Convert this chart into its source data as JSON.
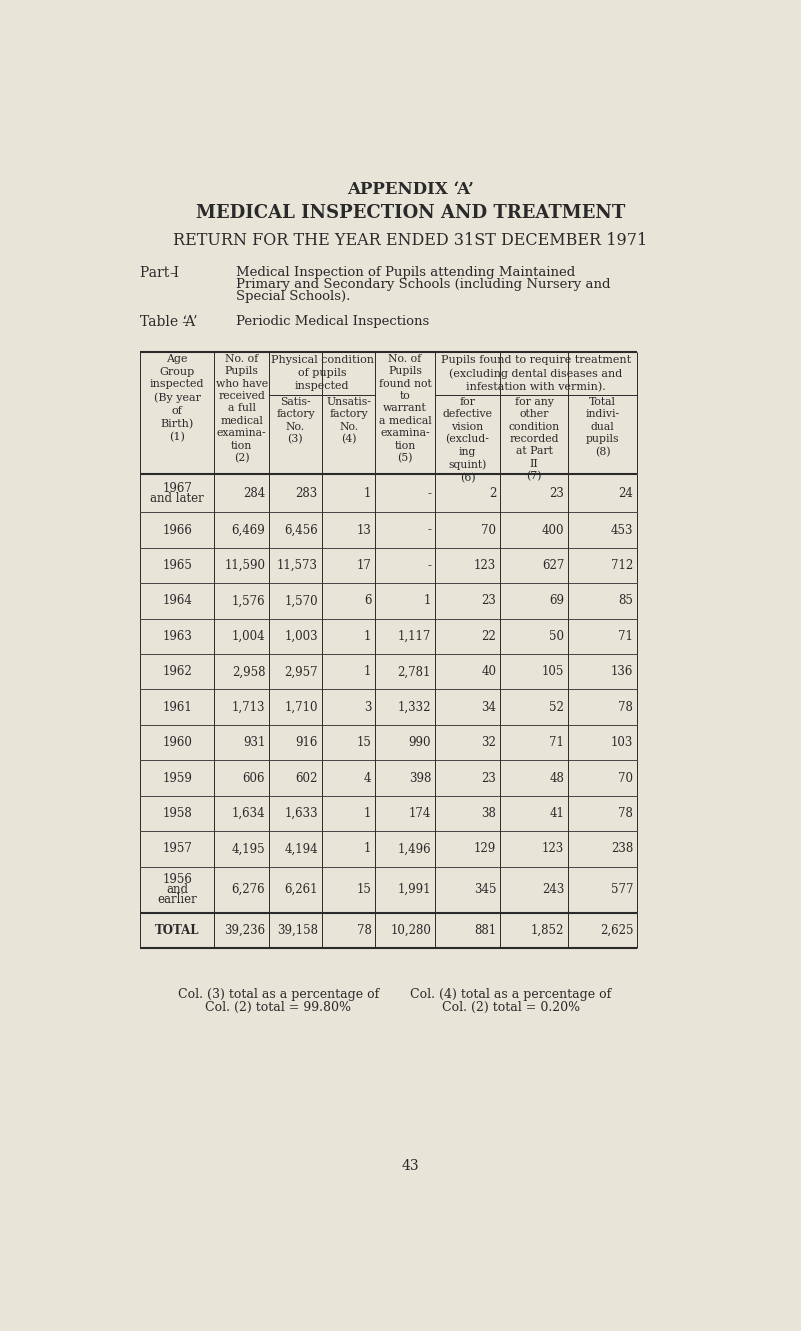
{
  "bg_color": "#e8e4d8",
  "text_color": "#2a2a2a",
  "title1": "APPENDIX ‘A’",
  "title2": "MEDICAL INSPECTION AND TREATMENT",
  "title3": "RETURN FOR THE YEAR ENDED 31ST DECEMBER 1971",
  "part_label": "Part I",
  "part_dash": "–",
  "part_lines": [
    "Medical Inspection of Pupils attending Maintained",
    "Primary and Secondary Schools (including Nursery and",
    "Special Schools)."
  ],
  "table_label": "Table ‘A’",
  "table_dash": "–",
  "table_text": "Periodic Medical Inspections",
  "rows": [
    {
      "age": "1967\nand later",
      "c2": "284",
      "c3": "283",
      "c4": "1",
      "c5": "-",
      "c6": "2",
      "c7": "23",
      "c8": "24"
    },
    {
      "age": "1966",
      "c2": "6,469",
      "c3": "6,456",
      "c4": "13",
      "c5": "-",
      "c6": "70",
      "c7": "400",
      "c8": "453"
    },
    {
      "age": "1965",
      "c2": "11,590",
      "c3": "11,573",
      "c4": "17",
      "c5": "-",
      "c6": "123",
      "c7": "627",
      "c8": "712"
    },
    {
      "age": "1964",
      "c2": "1,576",
      "c3": "1,570",
      "c4": "6",
      "c5": "1",
      "c6": "23",
      "c7": "69",
      "c8": "85"
    },
    {
      "age": "1963",
      "c2": "1,004",
      "c3": "1,003",
      "c4": "1",
      "c5": "1,117",
      "c6": "22",
      "c7": "50",
      "c8": "71"
    },
    {
      "age": "1962",
      "c2": "2,958",
      "c3": "2,957",
      "c4": "1",
      "c5": "2,781",
      "c6": "40",
      "c7": "105",
      "c8": "136"
    },
    {
      "age": "1961",
      "c2": "1,713",
      "c3": "1,710",
      "c4": "3",
      "c5": "1,332",
      "c6": "34",
      "c7": "52",
      "c8": "78"
    },
    {
      "age": "1960",
      "c2": "931",
      "c3": "916",
      "c4": "15",
      "c5": "990",
      "c6": "32",
      "c7": "71",
      "c8": "103"
    },
    {
      "age": "1959",
      "c2": "606",
      "c3": "602",
      "c4": "4",
      "c5": "398",
      "c6": "23",
      "c7": "48",
      "c8": "70"
    },
    {
      "age": "1958",
      "c2": "1,634",
      "c3": "1,633",
      "c4": "1",
      "c5": "174",
      "c6": "38",
      "c7": "41",
      "c8": "78"
    },
    {
      "age": "1957",
      "c2": "4,195",
      "c3": "4,194",
      "c4": "1",
      "c5": "1,496",
      "c6": "129",
      "c7": "123",
      "c8": "238"
    },
    {
      "age": "1956\nand\nearlier",
      "c2": "6,276",
      "c3": "6,261",
      "c4": "15",
      "c5": "1,991",
      "c6": "345",
      "c7": "243",
      "c8": "577"
    }
  ],
  "total_row": {
    "age": "TOTAL",
    "c2": "39,236",
    "c3": "39,158",
    "c4": "78",
    "c5": "10,280",
    "c6": "881",
    "c7": "1,852",
    "c8": "2,625"
  },
  "footnote1_line1": "Col. (3) total as a percentage of",
  "footnote1_line2": "Col. (2) total = 99.80%",
  "footnote2_line1": "Col. (4) total as a percentage of",
  "footnote2_line2": "Col. (2) total = 0.20%",
  "page_number": "43"
}
